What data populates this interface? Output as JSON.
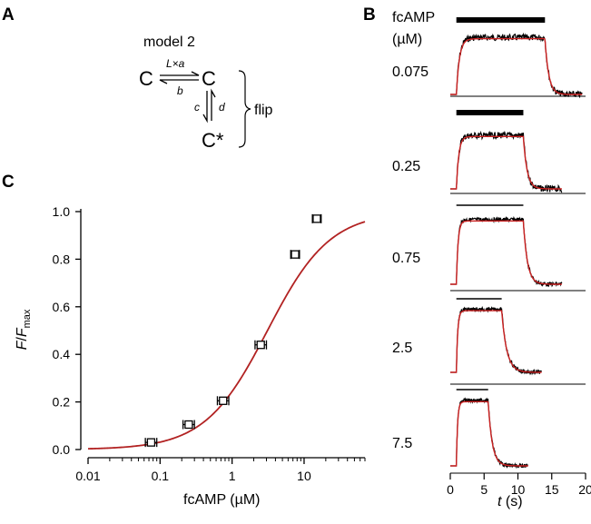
{
  "panels": {
    "a": {
      "letter": "A",
      "title": "model 2",
      "states": [
        "C",
        "C",
        "C*"
      ],
      "rate_forward": "L×a",
      "rate_back": "b",
      "rate_left": "c",
      "rate_right": "d",
      "group_label": "flip"
    },
    "b": {
      "letter": "B",
      "conc_header": "fcAMP",
      "conc_unit": "(µM)",
      "xlabel_var": "t",
      "xlabel_unit": " (s)"
    },
    "c": {
      "letter": "C",
      "ylabel_var": "F",
      "ylabel_slash": "/",
      "ylabel_sub": "max",
      "xlabel": "fcAMP (µM)"
    }
  },
  "chart_data": [
    {
      "type": "scatter",
      "panel": "C",
      "x_scale": "log",
      "xlim": [
        0.01,
        70
      ],
      "ylim": [
        0.0,
        1.0
      ],
      "x_ticks": [
        "0.01",
        "0.1",
        "1",
        "10"
      ],
      "y_ticks": [
        "0.0",
        "0.2",
        "0.4",
        "0.6",
        "0.8",
        "1.0"
      ],
      "xlabel": "fcAMP (µM)",
      "ylabel": "F/Fmax",
      "series": [
        {
          "kind": "points-with-horizontal-errorbars",
          "color": "#000000",
          "x": [
            0.075,
            0.25,
            0.75,
            2.5,
            7.5,
            15
          ],
          "y": [
            0.03,
            0.105,
            0.205,
            0.44,
            0.82,
            0.97
          ],
          "x_err_factor": [
            1.2,
            1.2,
            1.2,
            1.2,
            1.15,
            1.15
          ]
        },
        {
          "kind": "fit-line",
          "color": "#b22222",
          "model": "hill",
          "k_half": 3.1,
          "hill_n": 1.0,
          "fmax": 1.0
        }
      ]
    },
    {
      "type": "line",
      "panel": "B",
      "description_free": true,
      "xlim": [
        0,
        20
      ],
      "x_ticks": [
        "0",
        "5",
        "10",
        "15",
        "20"
      ],
      "xlabel": "t (s)",
      "trace_colors": {
        "data": "#000000",
        "fit": "#cc2222"
      },
      "traces": [
        {
          "conc": "0.075",
          "on": 0.9,
          "off": 14.0,
          "end": 19.5,
          "tau_on": 0.45,
          "tau_off": 0.55,
          "bar_thick": true
        },
        {
          "conc": "0.25",
          "on": 0.9,
          "off": 10.8,
          "end": 16.5,
          "tau_on": 0.35,
          "tau_off": 0.55,
          "bar_thick": true
        },
        {
          "conc": "0.75",
          "on": 0.9,
          "off": 10.8,
          "end": 16.5,
          "tau_on": 0.25,
          "tau_off": 0.6,
          "bar_thick": false
        },
        {
          "conc": "2.5",
          "on": 0.9,
          "off": 7.6,
          "end": 13.5,
          "tau_on": 0.2,
          "tau_off": 0.75,
          "bar_thick": false
        },
        {
          "conc": "7.5",
          "on": 0.9,
          "off": 5.6,
          "end": 11.5,
          "tau_on": 0.18,
          "tau_off": 0.6,
          "bar_thick": false
        }
      ]
    }
  ]
}
